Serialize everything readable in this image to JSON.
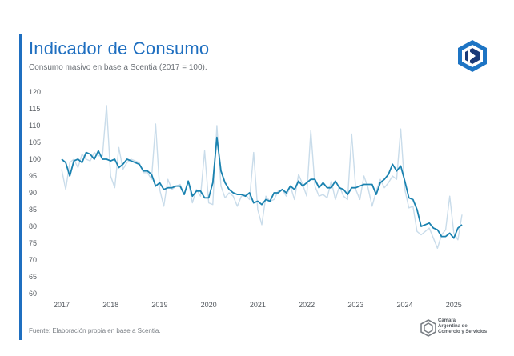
{
  "header": {
    "title": "Indicador de Consumo",
    "subtitle": "Consumo masivo en base a Scentia (2017 = 100)."
  },
  "footer": {
    "source": "Fuente: Elaboración propia en base a Scentia."
  },
  "logos": {
    "chamber_name_lines": [
      "Cámara",
      "Argentina de",
      "Comercio y Servicios"
    ]
  },
  "colors": {
    "title": "#1f6fc0",
    "series_trend": "#1a82b0",
    "series_raw": "#c9dcea",
    "logo_blue": "#1d74c4",
    "logo_dark": "#1a3a78"
  },
  "chart_data": {
    "type": "line",
    "title": "Indicador de Consumo",
    "subtitle": "Consumo masivo en base a Scentia (2017 = 100).",
    "xlabel": "",
    "ylabel": "",
    "x_ticks": [
      "2017",
      "2018",
      "2019",
      "2020",
      "2021",
      "2022",
      "2023",
      "2024",
      "2025"
    ],
    "y_ticks": [
      60,
      65,
      70,
      75,
      80,
      85,
      90,
      95,
      100,
      105,
      110,
      115,
      120
    ],
    "ylim": [
      60,
      120
    ],
    "xlim": [
      "2017-01",
      "2025-03"
    ],
    "grid": false,
    "legend": "none",
    "x": [
      "2017-01",
      "2017-02",
      "2017-03",
      "2017-04",
      "2017-05",
      "2017-06",
      "2017-07",
      "2017-08",
      "2017-09",
      "2017-10",
      "2017-11",
      "2017-12",
      "2018-01",
      "2018-02",
      "2018-03",
      "2018-04",
      "2018-05",
      "2018-06",
      "2018-07",
      "2018-08",
      "2018-09",
      "2018-10",
      "2018-11",
      "2018-12",
      "2019-01",
      "2019-02",
      "2019-03",
      "2019-04",
      "2019-05",
      "2019-06",
      "2019-07",
      "2019-08",
      "2019-09",
      "2019-10",
      "2019-11",
      "2019-12",
      "2020-01",
      "2020-02",
      "2020-03",
      "2020-04",
      "2020-05",
      "2020-06",
      "2020-07",
      "2020-08",
      "2020-09",
      "2020-10",
      "2020-11",
      "2020-12",
      "2021-01",
      "2021-02",
      "2021-03",
      "2021-04",
      "2021-05",
      "2021-06",
      "2021-07",
      "2021-08",
      "2021-09",
      "2021-10",
      "2021-11",
      "2021-12",
      "2022-01",
      "2022-02",
      "2022-03",
      "2022-04",
      "2022-05",
      "2022-06",
      "2022-07",
      "2022-08",
      "2022-09",
      "2022-10",
      "2022-11",
      "2022-12",
      "2023-01",
      "2023-02",
      "2023-03",
      "2023-04",
      "2023-05",
      "2023-06",
      "2023-07",
      "2023-08",
      "2023-09",
      "2023-10",
      "2023-11",
      "2023-12",
      "2024-01",
      "2024-02",
      "2024-03",
      "2024-04",
      "2024-05",
      "2024-06",
      "2024-07",
      "2024-08",
      "2024-09",
      "2024-10",
      "2024-11",
      "2024-12",
      "2025-01",
      "2025-02",
      "2025-03"
    ],
    "series": [
      {
        "values": [
          97.0,
          91.0,
          99.0,
          100.0,
          97.5,
          101.5,
          100.0,
          99.5,
          102.0,
          101.0,
          101.0,
          116.0,
          95.0,
          91.5,
          103.5,
          97.0,
          99.0,
          100.0,
          99.5,
          99.0,
          96.0,
          96.0,
          94.0,
          110.5,
          91.0,
          86.0,
          94.0,
          91.0,
          92.0,
          92.5,
          89.5,
          93.5,
          87.0,
          91.0,
          89.0,
          102.5,
          87.0,
          86.5,
          110.0,
          92.0,
          88.5,
          90.0,
          89.0,
          86.0,
          89.0,
          89.5,
          88.0,
          102.0,
          85.0,
          80.5,
          89.0,
          87.5,
          88.0,
          90.5,
          91.0,
          89.0,
          92.0,
          88.0,
          95.5,
          92.5,
          89.0,
          108.5,
          92.0,
          89.0,
          89.5,
          88.5,
          93.5,
          88.0,
          92.0,
          89.0,
          88.0,
          107.5,
          91.0,
          88.0,
          95.0,
          91.5,
          86.0,
          90.5,
          94.0,
          91.5,
          93.0,
          95.0,
          94.0,
          109.0,
          91.0,
          85.5,
          86.0,
          78.5,
          77.5,
          78.5,
          79.5,
          76.5,
          73.5,
          77.5,
          79.0,
          89.0,
          78.0,
          76.0,
          83.5
        ]
      },
      {
        "values": [
          100.0,
          99.0,
          95.0,
          99.5,
          100.0,
          99.0,
          102.0,
          101.5,
          100.0,
          102.5,
          100.0,
          100.0,
          99.5,
          100.0,
          97.5,
          98.5,
          100.0,
          99.5,
          99.0,
          98.5,
          96.5,
          96.5,
          95.5,
          92.0,
          93.0,
          91.0,
          91.5,
          91.5,
          92.0,
          92.0,
          89.5,
          93.5,
          89.0,
          90.5,
          90.5,
          88.5,
          88.5,
          93.0,
          106.5,
          96.5,
          93.0,
          91.0,
          90.0,
          89.5,
          89.5,
          89.0,
          90.0,
          87.0,
          87.5,
          86.5,
          88.0,
          87.5,
          90.0,
          90.0,
          91.0,
          90.0,
          92.0,
          91.0,
          93.5,
          92.0,
          93.0,
          94.0,
          94.0,
          91.5,
          93.0,
          91.5,
          91.5,
          93.5,
          91.5,
          91.0,
          89.5,
          91.5,
          91.5,
          92.0,
          92.5,
          92.5,
          92.5,
          89.5,
          93.0,
          94.0,
          95.5,
          98.5,
          96.5,
          98.0,
          93.5,
          88.5,
          88.0,
          85.0,
          80.0,
          80.5,
          81.0,
          79.5,
          79.0,
          77.0,
          77.0,
          78.0,
          76.5,
          79.5,
          80.5
        ]
      }
    ]
  }
}
